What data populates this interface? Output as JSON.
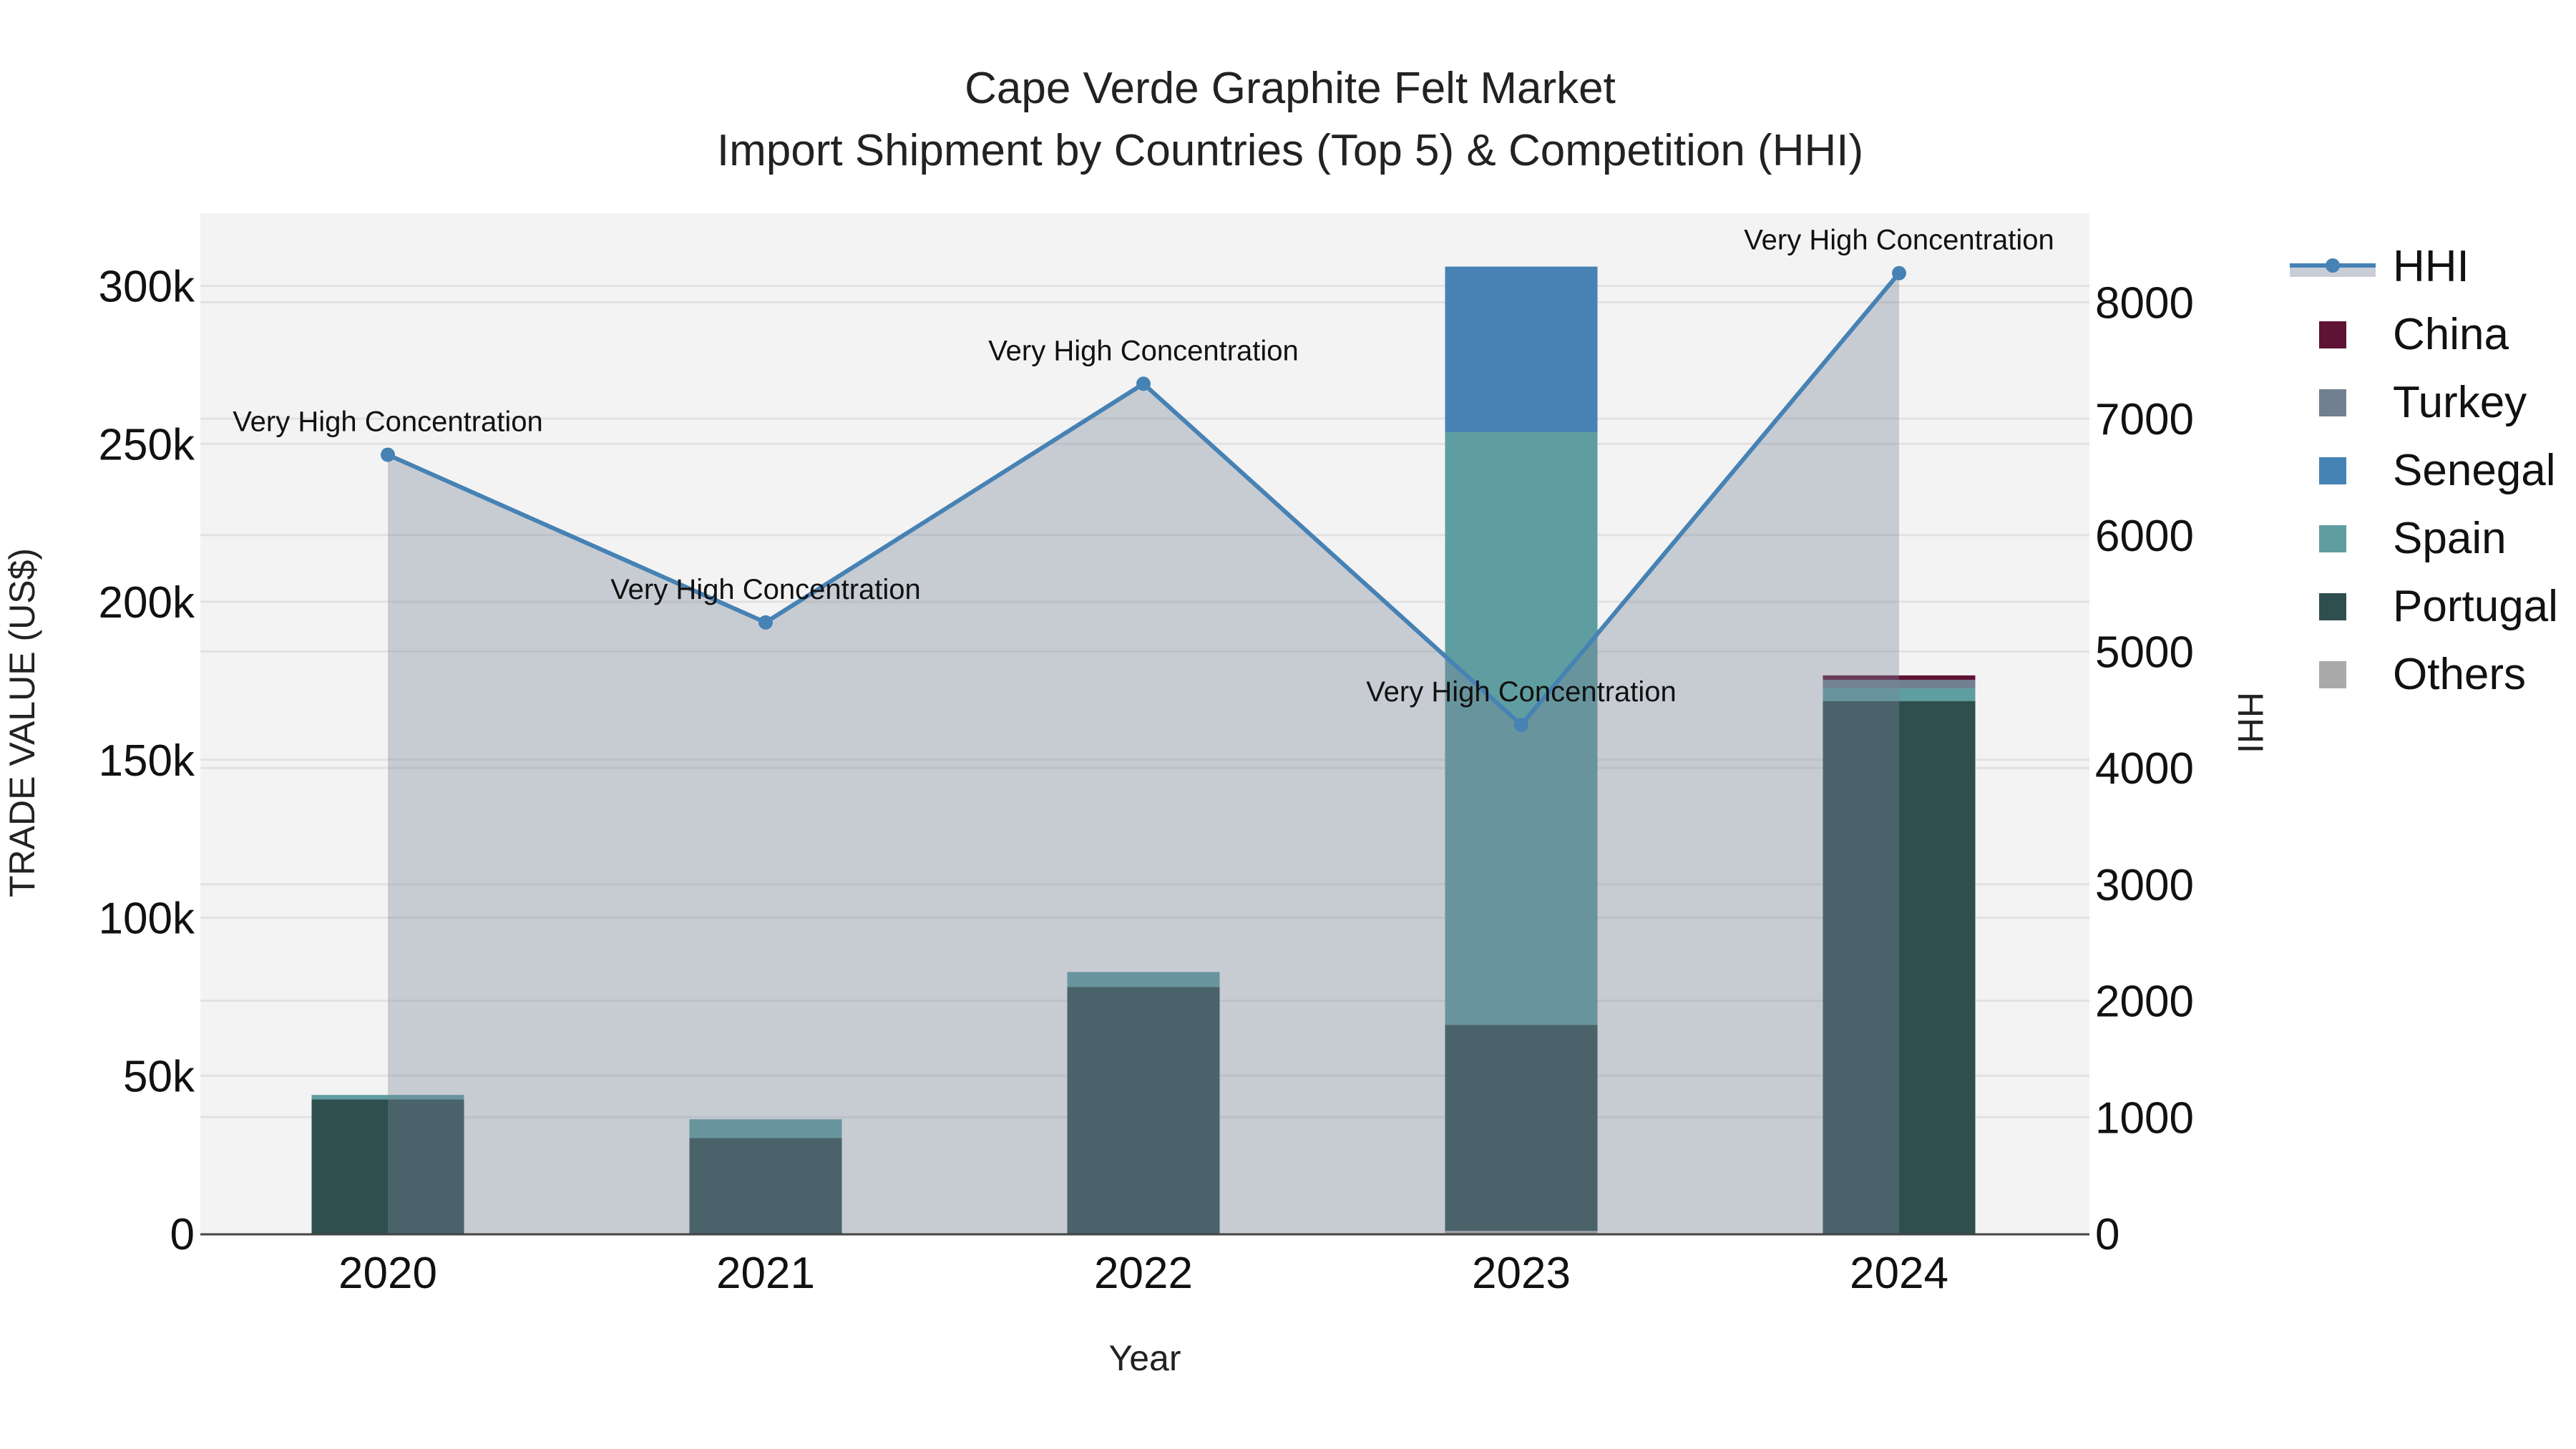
{
  "title": {
    "line1": "Cape Verde Graphite Felt Market",
    "line2": "Import Shipment by Countries (Top 5) & Competition (HHI)"
  },
  "axes": {
    "x_title": "Year",
    "y_left_title": "TRADE VALUE (US$)",
    "y_right_title": "HHI",
    "y_left_ticks": [
      "0",
      "50k",
      "100k",
      "150k",
      "200k",
      "250k",
      "300k"
    ],
    "y_right_ticks": [
      "0",
      "1000",
      "2000",
      "3000",
      "4000",
      "5000",
      "6000",
      "7000",
      "8000"
    ]
  },
  "legend": [
    {
      "label": "HHI",
      "type": "line",
      "color": "#4682b4"
    },
    {
      "label": "China",
      "type": "bar",
      "color": "#5e1234"
    },
    {
      "label": "Turkey",
      "type": "bar",
      "color": "#708090"
    },
    {
      "label": "Senegal",
      "type": "bar",
      "color": "#4682b4"
    },
    {
      "label": "Spain",
      "type": "bar",
      "color": "#5f9ea0"
    },
    {
      "label": "Portugal",
      "type": "bar",
      "color": "#2f4f4f"
    },
    {
      "label": "Others",
      "type": "bar",
      "color": "#a9a9a9"
    }
  ],
  "chart_data": {
    "type": "bar",
    "subtype": "stacked bar + line (dual axis)",
    "title": "Cape Verde Graphite Felt Market — Import Shipment by Countries (Top 5) & Competition (HHI)",
    "xlabel": "Year",
    "ylabel": "TRADE VALUE (US$)",
    "y2label": "HHI",
    "categories": [
      "2020",
      "2021",
      "2022",
      "2023",
      "2024"
    ],
    "ylim": [
      0,
      322000
    ],
    "y2lim": [
      0,
      8790
    ],
    "grid": true,
    "legend_position": "right",
    "series": [
      {
        "name": "Others",
        "axis": "y",
        "color": "#a9a9a9",
        "values": [
          0,
          0,
          0,
          900,
          0
        ]
      },
      {
        "name": "Portugal",
        "axis": "y",
        "color": "#2f4f4f",
        "values": [
          42500,
          30300,
          78100,
          65200,
          168600
        ]
      },
      {
        "name": "Spain",
        "axis": "y",
        "color": "#5f9ea0",
        "values": [
          1400,
          5900,
          4700,
          187600,
          4000
        ]
      },
      {
        "name": "Senegal",
        "axis": "y",
        "color": "#4682b4",
        "values": [
          0,
          0,
          0,
          52400,
          0
        ]
      },
      {
        "name": "Turkey",
        "axis": "y",
        "color": "#708090",
        "values": [
          0,
          0,
          0,
          0,
          2700
        ]
      },
      {
        "name": "China",
        "axis": "y",
        "color": "#5e1234",
        "values": [
          0,
          0,
          0,
          0,
          1400
        ]
      },
      {
        "name": "HHI",
        "axis": "y2",
        "type": "line+area",
        "color": "#4682b4",
        "values": [
          6690,
          5250,
          7300,
          4370,
          8250
        ]
      }
    ],
    "annotations": [
      {
        "x": "2020",
        "text": "Very High Concentration"
      },
      {
        "x": "2021",
        "text": "Very High Concentration"
      },
      {
        "x": "2022",
        "text": "Very High Concentration"
      },
      {
        "x": "2023",
        "text": "Very High Concentration"
      },
      {
        "x": "2024",
        "text": "Very High Concentration"
      }
    ]
  }
}
